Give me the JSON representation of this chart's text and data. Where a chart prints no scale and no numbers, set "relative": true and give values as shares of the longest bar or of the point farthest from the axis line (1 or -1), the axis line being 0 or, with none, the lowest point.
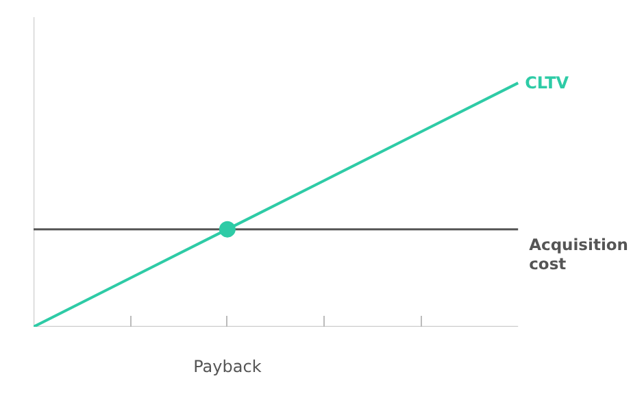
{
  "chart_data": {
    "type": "line",
    "relative": true,
    "categories": [
      null,
      null,
      null,
      null,
      null,
      null
    ],
    "series": [
      {
        "name": "CLTV",
        "color": "#2ecba6",
        "values": [
          0,
          0.2,
          0.4,
          0.6,
          0.8,
          1
        ]
      }
    ],
    "annotations": [
      "Payback"
    ],
    "ref_lines": [
      {
        "axis": "y",
        "value": 0.4,
        "label": "Acquisition cost",
        "color": "#555555",
        "line_style": "solid"
      }
    ],
    "grid": false,
    "line_style": "solid"
  }
}
